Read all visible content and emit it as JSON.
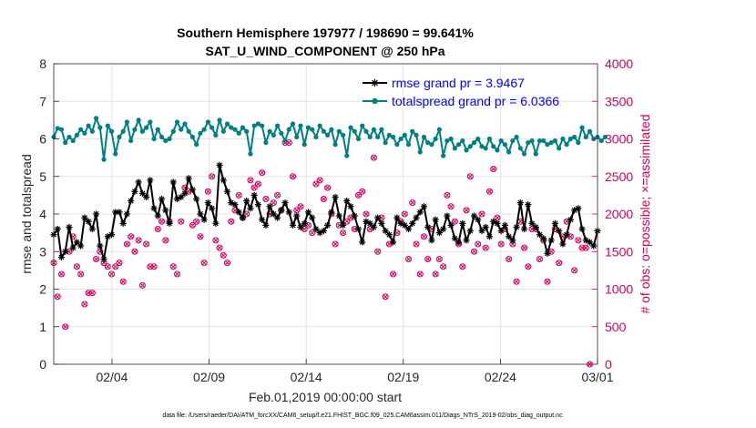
{
  "chart_data": {
    "type": "line",
    "title": "Southern Hemisphere 197977 / 198690 = 99.641%",
    "subtitle": "SAT_U_WIND_COMPONENT @ 250 hPa",
    "xlabel": "Feb.01,2019 00:00:00 start",
    "ylabel_left": "rmse and totalspread",
    "ylabel_right": "# of obs: o=possible; ×=assimilated",
    "xlim": [
      0,
      28
    ],
    "ylim_left": [
      0,
      8
    ],
    "ylim_right": [
      0,
      4000
    ],
    "x_ticks": [
      3,
      8,
      13,
      18,
      23,
      28
    ],
    "x_tick_labels": [
      "02/04",
      "02/09",
      "02/14",
      "02/19",
      "02/24",
      "03/01"
    ],
    "y_ticks_left": [
      "0",
      "1",
      "2",
      "3",
      "4",
      "5",
      "6",
      "7",
      "8"
    ],
    "y_ticks_right": [
      "0",
      "500",
      "1000",
      "1500",
      "2000",
      "2500",
      "3000",
      "3500",
      "4000"
    ],
    "legend": {
      "location": "top-right"
    },
    "colors": {
      "rmse": "#000000",
      "spread": "#008080",
      "obs": "#d6005e",
      "legend_text": "#0000ff"
    },
    "series": [
      {
        "name": "rmse grand pr = 3.9467",
        "axis": "left",
        "marker": "asterisk",
        "values": [
          3.45,
          3.6,
          2.85,
          3.0,
          3.65,
          3.1,
          3.25,
          3.15,
          3.9,
          3.8,
          3.6,
          4.0,
          3.15,
          2.8,
          3.4,
          3.45,
          4.05,
          4.05,
          3.75,
          4.0,
          4.35,
          4.6,
          4.85,
          4.55,
          4.45,
          4.9,
          4.15,
          3.95,
          4.4,
          4.1,
          3.75,
          4.85,
          4.4,
          4.45,
          4.55,
          4.95,
          4.65,
          4.4,
          4.0,
          3.85,
          4.3,
          4.15,
          3.75,
          5.3,
          4.9,
          4.6,
          4.3,
          4.25,
          4.05,
          3.9,
          4.35,
          4.15,
          4.5,
          4.25,
          3.85,
          3.7,
          4.2,
          4.0,
          3.9,
          4.1,
          4.3,
          4.05,
          3.7,
          3.95,
          3.65,
          3.75,
          4.05,
          3.9,
          3.6,
          3.5,
          3.55,
          3.7,
          4.05,
          4.45,
          3.95,
          3.7,
          4.35,
          4.2,
          3.95,
          3.6,
          3.25,
          3.8,
          3.75,
          3.65,
          3.9,
          3.75,
          3.55,
          3.45,
          3.25,
          3.9,
          3.75,
          3.7,
          3.6,
          3.75,
          3.9,
          4.05,
          4.2,
          3.65,
          3.3,
          3.85,
          3.5,
          3.6,
          3.95,
          3.7,
          3.35,
          3.25,
          3.75,
          3.3,
          3.55,
          3.95,
          3.85,
          3.55,
          3.65,
          3.4,
          3.8,
          3.75,
          3.55,
          3.7,
          3.4,
          3.3,
          3.65,
          4.3,
          3.6,
          4.25,
          3.75,
          3.65,
          3.45,
          3.35,
          2.95,
          3.3,
          3.75,
          3.55,
          3.2,
          3.45,
          3.85,
          4.1,
          4.15,
          3.6,
          3.3,
          3.25,
          3.15,
          3.55
        ]
      },
      {
        "name": "totalspread grand pr = 6.0366",
        "axis": "left",
        "marker": "dot",
        "values": [
          6.05,
          6.28,
          6.25,
          5.9,
          6.05,
          5.95,
          6.1,
          6.25,
          6.15,
          6.35,
          6.2,
          6.55,
          6.3,
          5.45,
          6.35,
          6.2,
          5.6,
          6.05,
          6.2,
          6.45,
          5.95,
          6.25,
          6.5,
          6.2,
          6.3,
          6.45,
          6.0,
          6.25,
          6.05,
          5.95,
          6.0,
          6.2,
          6.45,
          6.25,
          6.4,
          6.2,
          6.05,
          5.85,
          6.15,
          6.25,
          6.45,
          6.3,
          6.1,
          6.5,
          6.2,
          6.4,
          6.3,
          6.25,
          6.15,
          6.3,
          6.2,
          5.6,
          6.35,
          6.4,
          6.35,
          5.9,
          6.2,
          6.1,
          6.35,
          6.15,
          5.95,
          6.25,
          6.4,
          6.05,
          6.35,
          5.85,
          6.3,
          6.25,
          6.05,
          6.35,
          6.2,
          6.1,
          6.25,
          5.85,
          6.2,
          6.1,
          5.55,
          6.3,
          6.2,
          6.0,
          6.35,
          6.2,
          6.05,
          6.25,
          6.05,
          6.25,
          5.9,
          6.1,
          6.05,
          5.85,
          6.0,
          6.1,
          5.85,
          6.2,
          6.1,
          5.65,
          6.05,
          5.9,
          5.85,
          6.0,
          6.25,
          5.55,
          5.95,
          6.0,
          5.75,
          5.85,
          5.95,
          5.7,
          5.8,
          5.9,
          6.0,
          5.8,
          5.75,
          6.0,
          5.8,
          5.7,
          5.95,
          5.85,
          5.65,
          5.95,
          6.05,
          5.75,
          5.6,
          5.9,
          5.95,
          5.6,
          5.95,
          5.95,
          5.85,
          5.9,
          5.95,
          5.75,
          6.0,
          5.85,
          6.0,
          6.05,
          5.9,
          6.3,
          6.05,
          6.2,
          6.0,
          6.05,
          5.95,
          6.05
        ]
      },
      {
        "name": "obs possible / assimilated",
        "axis": "right",
        "marker": "circle-x",
        "values": [
          1350,
          900,
          1200,
          500,
          1500,
          1700,
          1300,
          1200,
          800,
          950,
          950,
          1400,
          1500,
          1350,
          1300,
          1200,
          1300,
          1350,
          1100,
          1600,
          1700,
          1500,
          1650,
          1050,
          1600,
          1300,
          1300,
          1800,
          1900,
          1650,
          1900,
          1300,
          1200,
          1900,
          2350,
          2300,
          1850,
          1900,
          1700,
          1350,
          2300,
          2500,
          1650,
          1550,
          1450,
          1350,
          1900,
          2050,
          2250,
          1950,
          2000,
          2450,
          2350,
          2400,
          2550,
          2200,
          2000,
          2150,
          2250,
          2050,
          2950,
          2950,
          2500,
          2050,
          2100,
          1800,
          1850,
          1750,
          2400,
          2450,
          2200,
          2350,
          2000,
          1600,
          1850,
          1750,
          1900,
          1950,
          1800,
          2250,
          2300,
          2000,
          1800,
          2750,
          1500,
          1950,
          900,
          1600,
          1200,
          1750,
          1900,
          2000,
          1400,
          2150,
          1600,
          1200,
          1700,
          1400,
          1800,
          1200,
          1400,
          1300,
          2250,
          2100,
          1900,
          1600,
          1300,
          2050,
          2500,
          1500,
          1600,
          2000,
          1550,
          2300,
          2600,
          1950,
          1600,
          1800,
          1400,
          1600,
          1100,
          1900,
          1550,
          1300,
          1800,
          1800,
          1400,
          1650,
          1100,
          1500,
          1800,
          1350,
          1700,
          1900,
          1700,
          1250,
          1650,
          1550,
          1550,
          0
        ]
      }
    ],
    "footer": "data file: /Users/raeder/DAI/ATM_forcXX/CAM6_setup/f.e21.FHIST_BGC.f09_025.CAM6assim.011/Diags_NTrS_2019-02/obs_diag_output.nc"
  }
}
